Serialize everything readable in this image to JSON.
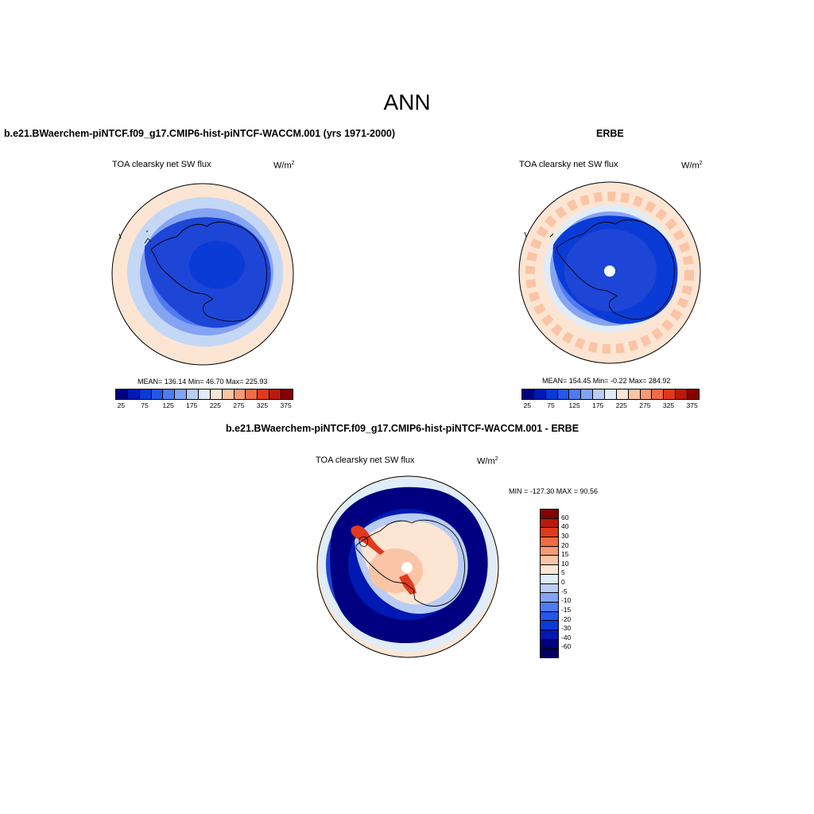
{
  "title": "ANN",
  "panels": [
    {
      "title": "b.e21.BWaerchem-piNTCF.f09_g17.CMIP6-hist-piNTCF-WACCM.001 (yrs 1971-2000)",
      "variable": "TOA clearsky net SW flux",
      "units": "W/m",
      "units_sup": "2",
      "stats": "MEAN= 136.14  Min=  46.70  Max= 225.93",
      "colorbar": {
        "ticks": [
          "25",
          "75",
          "125",
          "175",
          "225",
          "275",
          "325",
          "375"
        ],
        "colors": [
          "#000080",
          "#0019b3",
          "#0a3bd6",
          "#2557e8",
          "#4f7bef",
          "#84a3f2",
          "#b8ccf5",
          "#e0ecf8",
          "#fde5d3",
          "#fac4a6",
          "#f59b76",
          "#ef6c46",
          "#e03a1c",
          "#b81a0c",
          "#850000"
        ]
      }
    },
    {
      "title": "ERBE",
      "variable": "TOA clearsky net SW flux",
      "units": "W/m",
      "units_sup": "2",
      "stats": "MEAN= 154.45  Min=  -0.22  Max= 284.92",
      "colorbar": {
        "ticks": [
          "25",
          "75",
          "125",
          "175",
          "225",
          "275",
          "325",
          "375"
        ],
        "colors": [
          "#000080",
          "#0019b3",
          "#0a3bd6",
          "#2557e8",
          "#4f7bef",
          "#84a3f2",
          "#b8ccf5",
          "#e0ecf8",
          "#fde5d3",
          "#fac4a6",
          "#f59b76",
          "#ef6c46",
          "#e03a1c",
          "#b81a0c",
          "#850000"
        ]
      }
    },
    {
      "title": "b.e21.BWaerchem-piNTCF.f09_g17.CMIP6-hist-piNTCF-WACCM.001 - ERBE",
      "variable": "TOA clearsky net SW flux",
      "units": "W/m",
      "units_sup": "2",
      "stats": "MIN = -127.30 MAX =  90.56",
      "colorbar": {
        "ticks": [
          "60",
          "40",
          "30",
          "20",
          "15",
          "10",
          "5",
          "0",
          "-5",
          "-10",
          "-15",
          "-20",
          "-30",
          "-40",
          "-60"
        ],
        "colors": [
          "#850000",
          "#b81a0c",
          "#e03a1c",
          "#ef6c46",
          "#f59b76",
          "#fac4a6",
          "#fde5d3",
          "#e0ecf8",
          "#b8ccf5",
          "#84a3f2",
          "#4f7bef",
          "#2557e8",
          "#0a3bd6",
          "#0019b3",
          "#000080",
          "#000064"
        ]
      }
    }
  ],
  "map_colors": {
    "ocean_pos": "#fde5d3",
    "light_blue": "#c4d7f5",
    "mid_blue": "#84a3f2",
    "blue": "#4f7bef",
    "deep_blue": "#1d45d6",
    "dark_blue": "#0019b3",
    "navy": "#000080",
    "diff_land": "#fac4a6",
    "diff_red": "#e03a1c"
  }
}
